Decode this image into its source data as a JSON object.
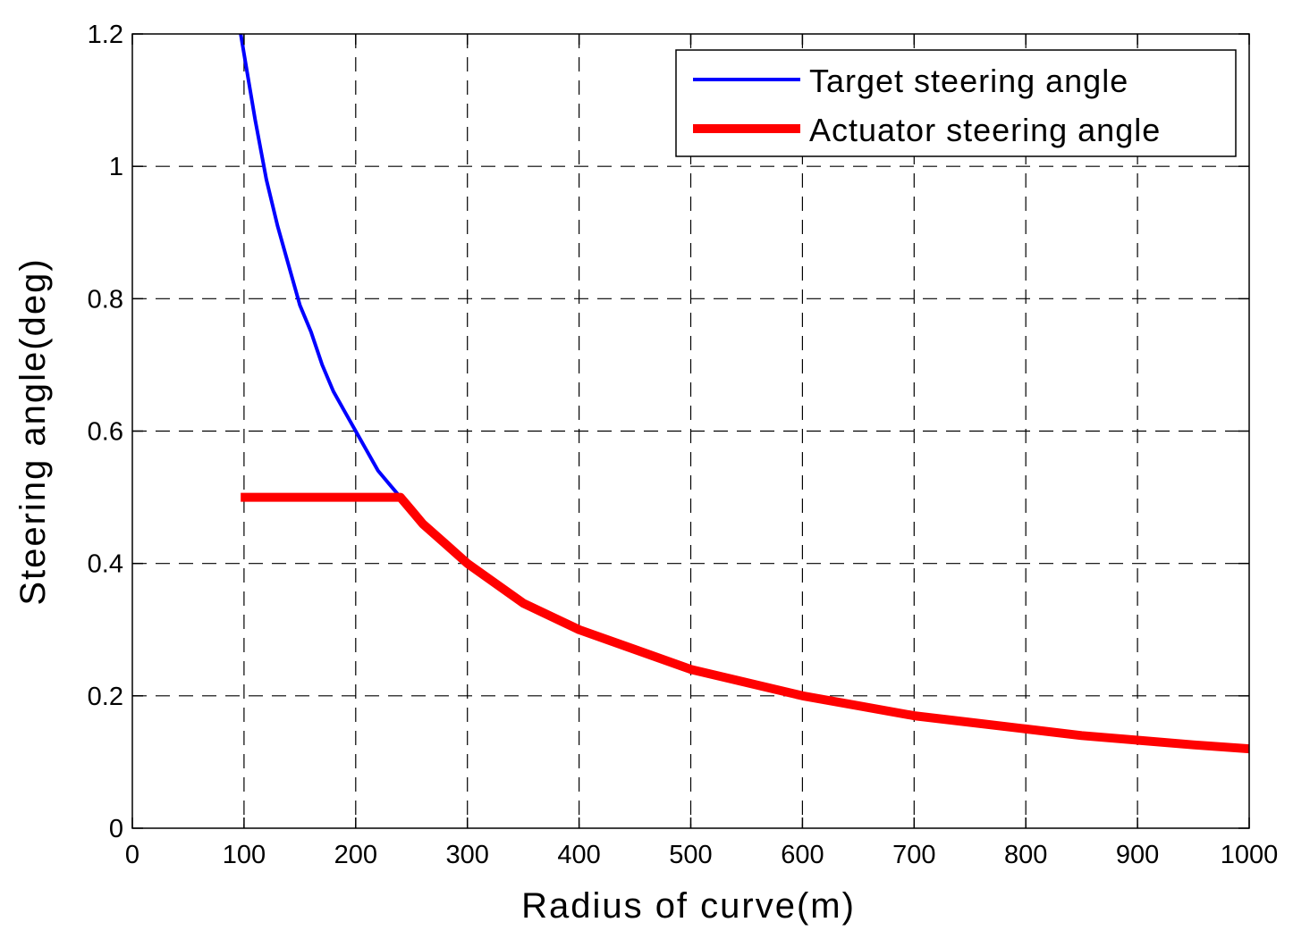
{
  "chart_data": {
    "type": "line",
    "title": "",
    "xlabel": "Radius of curve(m)",
    "ylabel": "Steering angle(deg)",
    "xlim": [
      0,
      1000
    ],
    "ylim": [
      0,
      1.2
    ],
    "xticks": [
      0,
      100,
      200,
      300,
      400,
      500,
      600,
      700,
      800,
      900,
      1000
    ],
    "yticks": [
      0,
      0.2,
      0.4,
      0.6,
      0.8,
      1,
      1.2
    ],
    "xtick_labels": [
      "0",
      "100",
      "200",
      "300",
      "400",
      "500",
      "600",
      "700",
      "800",
      "900",
      "1000"
    ],
    "ytick_labels": [
      "0",
      "0.2",
      "0.4",
      "0.6",
      "0.8",
      "1",
      "1.2"
    ],
    "grid": true,
    "legend_position": "top-right",
    "series": [
      {
        "name": "Target steering angle",
        "color": "#0000ff",
        "x": [
          97,
          100,
          110,
          120,
          130,
          140,
          150,
          160,
          170,
          180,
          190,
          200,
          210,
          220,
          230,
          240
        ],
        "y": [
          1.2,
          1.17,
          1.07,
          0.98,
          0.91,
          0.85,
          0.79,
          0.75,
          0.7,
          0.66,
          0.63,
          0.6,
          0.57,
          0.54,
          0.52,
          0.5
        ]
      },
      {
        "name": "Actuator steering angle",
        "color": "#ff0000",
        "x": [
          97,
          240,
          250,
          260,
          280,
          300,
          350,
          400,
          450,
          500,
          550,
          600,
          650,
          700,
          750,
          800,
          850,
          900,
          950,
          1000
        ],
        "y": [
          0.5,
          0.5,
          0.48,
          0.46,
          0.43,
          0.4,
          0.34,
          0.3,
          0.27,
          0.24,
          0.22,
          0.2,
          0.185,
          0.17,
          0.16,
          0.15,
          0.14,
          0.133,
          0.126,
          0.12
        ]
      }
    ]
  }
}
